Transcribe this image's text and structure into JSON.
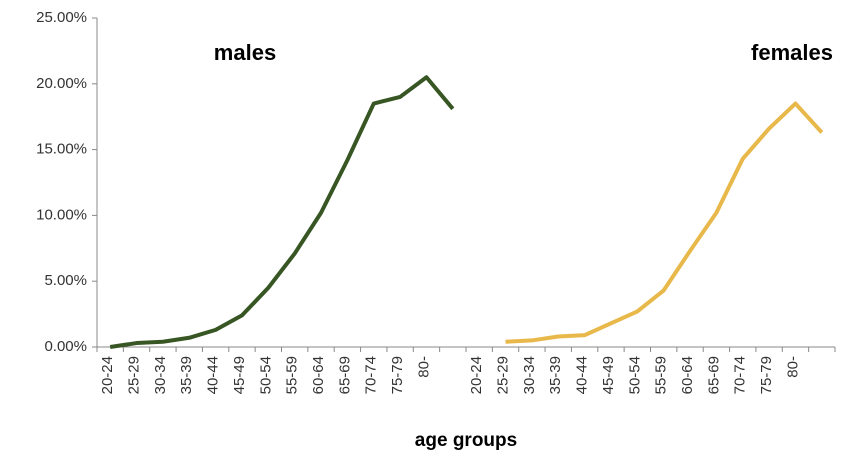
{
  "chart_data": {
    "type": "line",
    "x_label": "age groups",
    "categories": [
      "20-24",
      "25-29",
      "30-34",
      "35-39",
      "40-44",
      "45-49",
      "50-54",
      "55-59",
      "60-64",
      "65-69",
      "70-74",
      "75-79",
      "80-",
      null,
      "20-24",
      "25-29",
      "30-34",
      "35-39",
      "40-44",
      "45-49",
      "50-54",
      "55-59",
      "60-64",
      "65-69",
      "70-74",
      "75-79",
      "80-",
      null
    ],
    "series": [
      {
        "name": "males",
        "color": "#375623",
        "values": [
          0.0,
          0.3,
          0.4,
          0.7,
          1.3,
          2.4,
          4.5,
          7.1,
          10.2,
          14.2,
          18.5,
          19.0,
          20.5,
          18.1,
          null,
          null,
          null,
          null,
          null,
          null,
          null,
          null,
          null,
          null,
          null,
          null,
          null,
          null
        ]
      },
      {
        "name": "females",
        "color": "#e8b84a",
        "values": [
          null,
          null,
          null,
          null,
          null,
          null,
          null,
          null,
          null,
          null,
          null,
          null,
          null,
          null,
          null,
          0.4,
          0.5,
          0.8,
          0.9,
          1.8,
          2.7,
          4.3,
          7.3,
          10.2,
          14.3,
          16.6,
          18.5,
          16.3
        ]
      }
    ],
    "ylim": [
      0,
      25
    ],
    "yticks": [
      {
        "value": 0,
        "label": "0.00%"
      },
      {
        "value": 5,
        "label": "5.00%"
      },
      {
        "value": 10,
        "label": "10.00%"
      },
      {
        "value": 15,
        "label": "15.00%"
      },
      {
        "value": 20,
        "label": "20.00%"
      },
      {
        "value": 25,
        "label": "25.00%"
      }
    ]
  }
}
